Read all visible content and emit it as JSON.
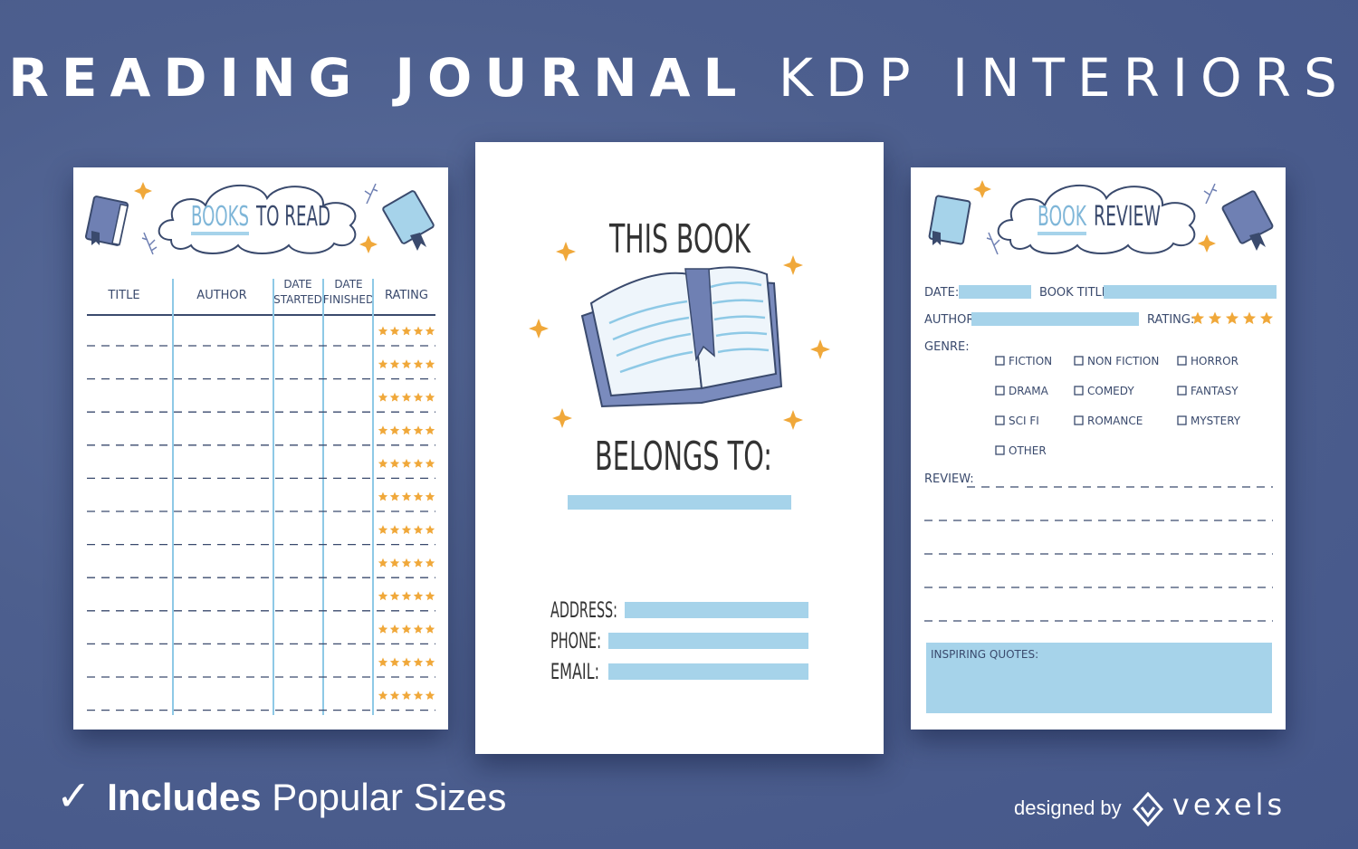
{
  "headline": {
    "bold": "READING JOURNAL",
    "light": "KDP INTERIORS"
  },
  "left_page": {
    "title_blue": "BOOKS",
    "title_dark": "TO READ",
    "columns": [
      "TITLE",
      "AUTHOR",
      "DATE STARTED",
      "DATE FINISHED",
      "RATING"
    ],
    "rows": 12,
    "stars_per_row": 5
  },
  "center_page": {
    "line1": "THIS BOOK",
    "line2": "BELONGS TO:",
    "fields": [
      "ADDRESS:",
      "PHONE:",
      "EMAIL:"
    ]
  },
  "right_page": {
    "title_blue": "BOOK",
    "title_dark": "REVIEW",
    "date_label": "DATE:",
    "book_title_label": "BOOK TITLE:",
    "author_label": "AUTHOR:",
    "rating_label": "RATING:",
    "genre_label": "GENRE:",
    "genres": [
      "FICTION",
      "NON FICTION",
      "HORROR",
      "DRAMA",
      "COMEDY",
      "FANTASY",
      "SCI FI",
      "ROMANCE",
      "MYSTERY",
      "OTHER"
    ],
    "review_label": "REVIEW:",
    "quotes_label": "INSPIRING QUOTES:"
  },
  "footer": {
    "check": "✓",
    "bold": "Includes",
    "rest": "Popular Sizes",
    "designed_by": "designed by",
    "brand": "vexels"
  },
  "colors": {
    "background": "#4d5f8e",
    "light_blue": "#a6d3ea",
    "star": "#f0a83a",
    "ink": "#3a4a6d",
    "book_blue": "#6f80b3"
  }
}
